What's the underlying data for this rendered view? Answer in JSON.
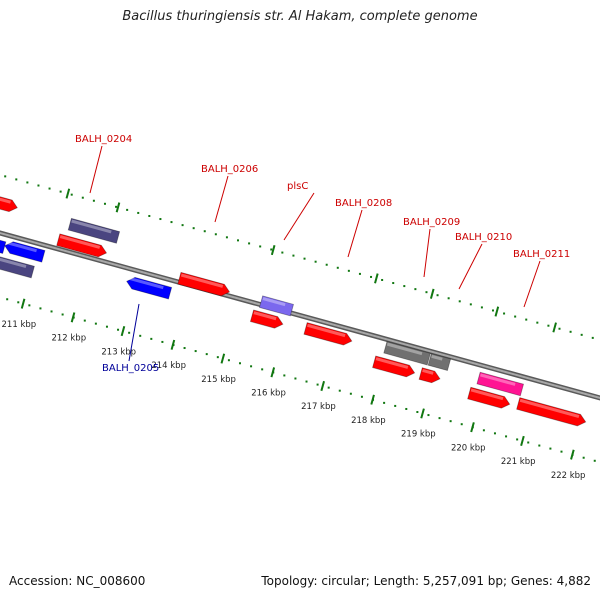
{
  "title": "Bacillus thuringiensis str. Al Hakam, complete genome",
  "footer": {
    "accession": "Accession: NC_008600",
    "topology": "Topology: circular; Length: 5,257,091 bp; Genes: 4,882"
  },
  "colors": {
    "backbone": "#808080",
    "tick_dots": "#117711",
    "cds_forward": "#ff0000",
    "cds_reverse": "#0000ff",
    "cds_outline_dark": "#4a4580",
    "cds_light_purple": "#7b68ee",
    "cds_gray": "#707070",
    "cds_pink": "#ff1493",
    "label_red": "#cc0000",
    "label_blue": "#000099"
  },
  "kbp_labels": [
    "211 kbp",
    "212 kbp",
    "213 kbp",
    "214 kbp",
    "215 kbp",
    "216 kbp",
    "217 kbp",
    "218 kbp",
    "219 kbp",
    "220 kbp",
    "221 kbp",
    "222 kbp"
  ],
  "gene_labels": [
    {
      "text": "BALH_0204",
      "strand": "forward"
    },
    {
      "text": "BALH_0206",
      "strand": "forward"
    },
    {
      "text": "plsC",
      "strand": "forward"
    },
    {
      "text": "BALH_0208",
      "strand": "forward"
    },
    {
      "text": "BALH_0209",
      "strand": "forward"
    },
    {
      "text": "BALH_0210",
      "strand": "forward"
    },
    {
      "text": "BALH_0211",
      "strand": "forward"
    },
    {
      "text": "BALH_0205",
      "strand": "reverse"
    }
  ]
}
